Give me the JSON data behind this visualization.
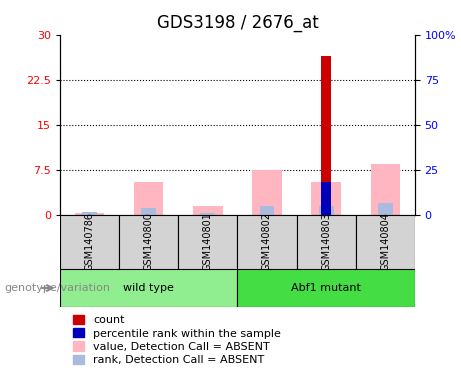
{
  "title": "GDS3198 / 2676_at",
  "samples": [
    "GSM140786",
    "GSM140800",
    "GSM140801",
    "GSM140802",
    "GSM140803",
    "GSM140804"
  ],
  "group_spans": [
    [
      0,
      2,
      "wild type",
      "#90EE90"
    ],
    [
      3,
      5,
      "Abf1 mutant",
      "#44DD44"
    ]
  ],
  "count_values": [
    0,
    0,
    0,
    0,
    26.5,
    0
  ],
  "percentile_rank_values": [
    0,
    0,
    0,
    0,
    5.5,
    0
  ],
  "value_absent_values": [
    0.4,
    5.5,
    1.5,
    7.5,
    5.5,
    8.5
  ],
  "rank_absent_values": [
    0.5,
    1.2,
    0.4,
    1.5,
    1.5,
    2.0
  ],
  "left_ylim": [
    0,
    30
  ],
  "left_yticks": [
    0,
    7.5,
    15,
    22.5,
    30
  ],
  "right_ylim": [
    0,
    100
  ],
  "right_yticks": [
    0,
    25,
    50,
    75,
    100
  ],
  "right_yticklabels": [
    "0",
    "25",
    "50",
    "75",
    "100%"
  ],
  "dotted_lines": [
    7.5,
    15,
    22.5
  ],
  "count_color": "#CC0000",
  "percentile_color": "#0000BB",
  "value_absent_color": "#FFB6C1",
  "rank_absent_color": "#AABBDD",
  "title_fontsize": 12,
  "tick_fontsize": 8,
  "label_fontsize": 7,
  "legend_fontsize": 8,
  "xlabel_area_color": "#D3D3D3",
  "genotype_label": "genotype/variation",
  "background_color": "#FFFFFF"
}
